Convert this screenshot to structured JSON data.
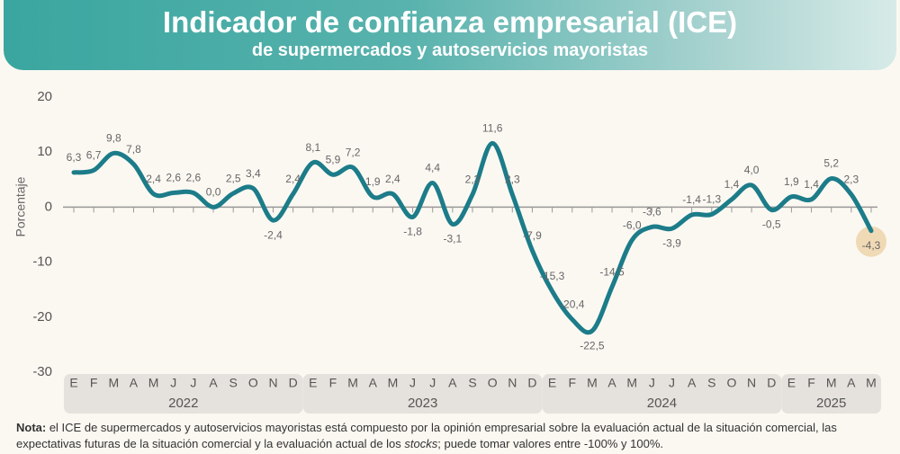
{
  "chart_data": {
    "type": "line",
    "title": "Indicador de confianza empresarial (ICE)",
    "subtitle": "de supermercados y autoservicios mayoristas",
    "y_label": "Porcentaje",
    "groups": [
      {
        "label": "2022",
        "categories": [
          "E",
          "F",
          "M",
          "A",
          "M",
          "J",
          "J",
          "A",
          "S",
          "O",
          "N",
          "D"
        ]
      },
      {
        "label": "2023",
        "categories": [
          "E",
          "F",
          "M",
          "A",
          "M",
          "J",
          "J",
          "A",
          "S",
          "O",
          "N",
          "D"
        ]
      },
      {
        "label": "2024",
        "categories": [
          "E",
          "F",
          "M",
          "A",
          "M",
          "J",
          "J",
          "A",
          "S",
          "O",
          "N",
          "D"
        ]
      },
      {
        "label": "2025",
        "categories": [
          "E",
          "F",
          "M",
          "A",
          "M"
        ]
      }
    ],
    "values": [
      6.3,
      6.7,
      9.8,
      7.8,
      2.4,
      2.6,
      2.6,
      0.0,
      2.5,
      3.4,
      -2.4,
      2.4,
      8.1,
      5.9,
      7.2,
      1.9,
      2.4,
      -1.8,
      4.4,
      -3.1,
      2.3,
      11.6,
      2.3,
      -7.9,
      -15.3,
      -20.4,
      -22.5,
      -14.5,
      -6.0,
      -3.6,
      -3.9,
      -1.4,
      -1.3,
      1.4,
      4.0,
      -0.5,
      1.9,
      1.4,
      5.2,
      2.3,
      -4.3
    ],
    "value_labels": [
      "6,3",
      "6,7",
      "9,8",
      "7,8",
      "2,4",
      "2,6",
      "2,6",
      "0,0",
      "2,5",
      "3,4",
      "-2,4",
      "2,4",
      "8,1",
      "5,9",
      "7,2",
      "1,9",
      "2,4",
      "-1,8",
      "4,4",
      "-3,1",
      "2,3",
      "11,6",
      "2,3",
      "-7,9",
      "-15,3",
      "-20,4",
      "-22,5",
      "-14,5",
      "-6,0",
      "-3,6",
      "-3,9",
      "-1,4",
      "-1,3",
      "1,4",
      "4,0",
      "-0,5",
      "1,9",
      "1,4",
      "5,2",
      "2,3",
      "-4,3"
    ],
    "color": "#1c7c89",
    "ylim": [
      -30,
      20
    ],
    "yticks": [
      -30,
      -20,
      -10,
      0,
      10,
      20
    ],
    "grid": false
  },
  "note": {
    "label": "Nota:",
    "text_1": " el ICE de supermercados y autoservicios mayoristas está compuesto por la opinión empresarial sobre la evaluación actual de la situación comercial, las expectativas futuras de la situación comercial y la evaluación actual de los ",
    "italic": "stocks",
    "text_2": "; puede tomar valores entre -100% y 100%."
  }
}
